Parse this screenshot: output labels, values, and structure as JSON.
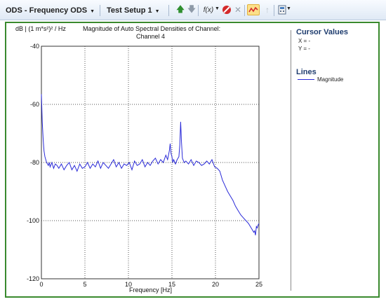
{
  "toolbar": {
    "ods_label": "ODS - Frequency ODS",
    "setup_label": "Test Setup 1",
    "fx_label": "f(x)"
  },
  "sidebar": {
    "cursor_title": "Cursor Values",
    "x_line": "X = -",
    "y_line": "Y = -",
    "lines_title": "Lines",
    "legend_label": "Magnitude"
  },
  "colors": {
    "frame": "#3a8a2e",
    "line": "#2a2ad8",
    "accent": "#1e3c6e"
  },
  "chart_data": {
    "type": "line",
    "title_line1": "Magnitude of Auto Spectral Densities of Channel:",
    "title_line2": "Channel 4",
    "ylabel": "dB | (1 m*s²)² / Hz",
    "xlabel": "Frequency [Hz]",
    "xlim": [
      0,
      25
    ],
    "ylim": [
      -120,
      -40
    ],
    "x_ticks": [
      0,
      5,
      10,
      15,
      20,
      25
    ],
    "y_ticks": [
      -40,
      -60,
      -80,
      -100,
      -120
    ],
    "grid": true,
    "series": [
      {
        "name": "Magnitude",
        "x": [
          0.0,
          0.1,
          0.2,
          0.3,
          0.4,
          0.5,
          0.6,
          0.7,
          0.8,
          0.9,
          1.0,
          1.2,
          1.4,
          1.6,
          1.8,
          2.0,
          2.3,
          2.6,
          2.9,
          3.2,
          3.5,
          3.8,
          4.1,
          4.4,
          4.7,
          5.0,
          5.3,
          5.6,
          5.9,
          6.2,
          6.5,
          6.8,
          7.1,
          7.4,
          7.7,
          8.0,
          8.3,
          8.6,
          8.9,
          9.2,
          9.5,
          9.8,
          10.1,
          10.4,
          10.7,
          11.0,
          11.3,
          11.6,
          11.9,
          12.2,
          12.5,
          12.8,
          13.1,
          13.4,
          13.7,
          14.0,
          14.3,
          14.5,
          14.7,
          14.8,
          14.9,
          15.0,
          15.1,
          15.2,
          15.4,
          15.6,
          15.8,
          15.9,
          16.0,
          16.1,
          16.2,
          16.4,
          16.6,
          16.9,
          17.2,
          17.5,
          17.8,
          18.1,
          18.4,
          18.7,
          19.0,
          19.3,
          19.6,
          19.9,
          20.2,
          20.5,
          20.8,
          21.1,
          21.4,
          21.7,
          22.0,
          22.3,
          22.6,
          22.9,
          23.2,
          23.5,
          23.8,
          24.0,
          24.2,
          24.4,
          24.5,
          24.6,
          24.7,
          24.8,
          24.9,
          25.0
        ],
        "y": [
          -56.5,
          -66,
          -72,
          -76,
          -78,
          -79,
          -80,
          -80.5,
          -81,
          -80,
          -81.5,
          -80,
          -82,
          -80.5,
          -81,
          -82,
          -80.5,
          -82.5,
          -81,
          -80,
          -82.5,
          -81,
          -83,
          -80.5,
          -82,
          -81.5,
          -80,
          -82,
          -80.5,
          -81.5,
          -79.5,
          -82,
          -80,
          -81,
          -82,
          -80.5,
          -79,
          -81.5,
          -80,
          -82,
          -80.5,
          -81,
          -80,
          -82.5,
          -79.5,
          -81,
          -80.5,
          -79,
          -81.5,
          -80,
          -81,
          -79.5,
          -78.5,
          -80.5,
          -79,
          -80,
          -77.5,
          -79,
          -76,
          -73.5,
          -77,
          -78,
          -80,
          -79,
          -80.5,
          -79,
          -78,
          -74,
          -66,
          -73,
          -78.5,
          -80,
          -79.5,
          -80.5,
          -79,
          -81,
          -79.5,
          -80,
          -81,
          -80.5,
          -79.5,
          -80.5,
          -79,
          -81.5,
          -82,
          -83,
          -86,
          -88,
          -90,
          -91.5,
          -93,
          -95,
          -96.5,
          -98,
          -99,
          -100,
          -101,
          -102,
          -103,
          -104,
          -103.5,
          -105,
          -102,
          -102.5,
          -101.5,
          -101
        ]
      }
    ]
  }
}
